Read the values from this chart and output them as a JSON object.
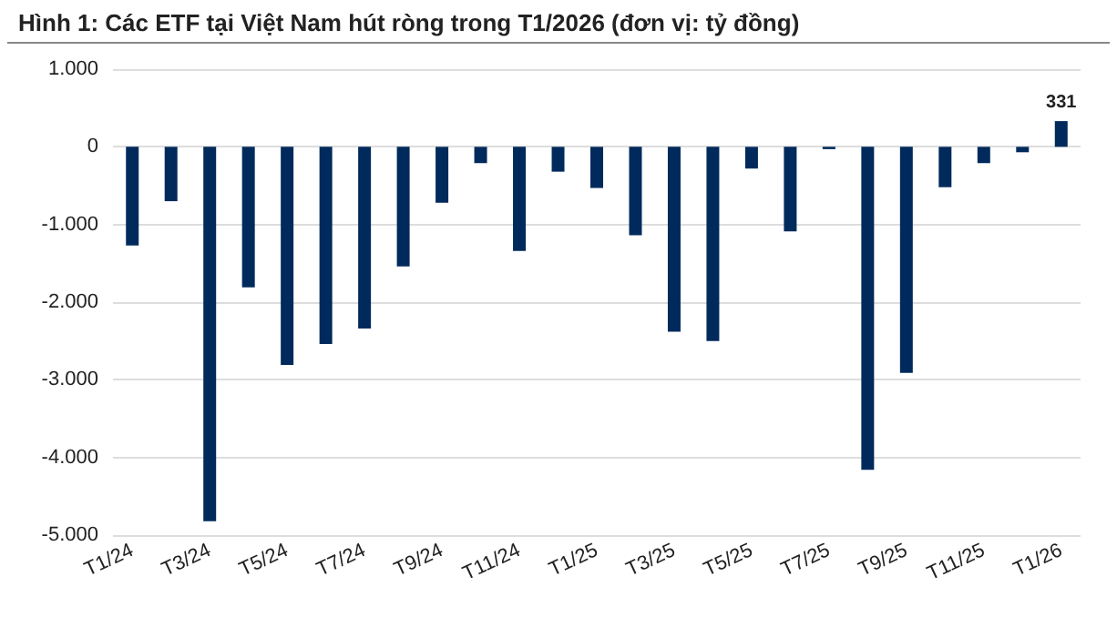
{
  "chart_data": {
    "type": "bar",
    "title": "Hình 1: Các ETF tại Việt Nam hút ròng trong T1/2026 (đơn vị: tỷ đồng)",
    "categories": [
      "T1/24",
      null,
      "T3/24",
      null,
      "T5/24",
      null,
      "T7/24",
      null,
      "T9/24",
      null,
      "T11/24",
      null,
      "T1/25",
      null,
      "T3/25",
      null,
      "T5/25",
      null,
      "T7/25",
      null,
      "T9/25",
      null,
      "T11/25",
      null,
      "T1/26"
    ],
    "values": [
      -1270,
      -700,
      -4820,
      -1810,
      -2810,
      -2540,
      -2340,
      -1540,
      -720,
      -210,
      -1340,
      -320,
      -530,
      -1140,
      -2380,
      -2500,
      -280,
      -1090,
      -30,
      -4160,
      -2910,
      -520,
      -210,
      -70,
      331
    ],
    "value_labels": [
      null,
      null,
      null,
      null,
      null,
      null,
      null,
      null,
      null,
      null,
      null,
      null,
      null,
      null,
      null,
      null,
      null,
      null,
      null,
      null,
      null,
      null,
      null,
      null,
      "331"
    ],
    "color": "#002a5c",
    "ylim": [
      -5000,
      1000
    ],
    "yticks": [
      {
        "value": -5000,
        "label": "-5.000"
      },
      {
        "value": -4000,
        "label": "-4.000"
      },
      {
        "value": -3000,
        "label": "-3.000"
      },
      {
        "value": -2000,
        "label": "-2.000"
      },
      {
        "value": -1000,
        "label": "-1.000"
      },
      {
        "value": 0,
        "label": "0"
      },
      {
        "value": 1000,
        "label": "1.000"
      }
    ],
    "grid": "y"
  }
}
